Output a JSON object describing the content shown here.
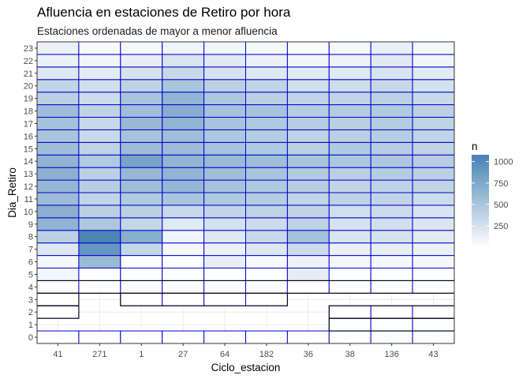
{
  "colors": {
    "low": "#ffffff",
    "high": "#4682b4",
    "cell_border": "#0000cd",
    "empty_border": "#000000",
    "panel_border": "#333333",
    "grid": "#ebebeb"
  },
  "chart_data": {
    "type": "heatmap",
    "title": "Afluencia en estaciones de Retiro por hora",
    "subtitle": "Estaciones ordenadas de mayor a menor afluencia",
    "xlabel": "Ciclo_estacion",
    "ylabel": "Dia_Retiro",
    "categories": [
      "41",
      "271",
      "1",
      "27",
      "64",
      "182",
      "36",
      "38",
      "136",
      "43"
    ],
    "y_categories": [
      "0",
      "1",
      "2",
      "3",
      "4",
      "5",
      "6",
      "7",
      "8",
      "9",
      "10",
      "11",
      "12",
      "13",
      "14",
      "15",
      "16",
      "17",
      "18",
      "19",
      "20",
      "21",
      "22",
      "23"
    ],
    "legend": {
      "title": "n",
      "position": "right",
      "breaks": [
        250,
        500,
        750,
        1000
      ],
      "range": [
        1,
        1080
      ]
    },
    "grid": true,
    "rows": [
      {
        "y": "0",
        "values": [
          10,
          10,
          5,
          5,
          20,
          5,
          5,
          5,
          30,
          20
        ]
      },
      {
        "y": "1",
        "values": [
          null,
          null,
          null,
          null,
          null,
          null,
          null,
          5,
          5,
          5
        ]
      },
      {
        "y": "2",
        "values": [
          3,
          null,
          null,
          null,
          null,
          null,
          null,
          3,
          3,
          3
        ]
      },
      {
        "y": "3",
        "values": [
          3,
          null,
          3,
          3,
          3,
          3,
          null,
          null,
          null,
          null
        ]
      },
      {
        "y": "4",
        "values": [
          3,
          3,
          3,
          3,
          3,
          3,
          3,
          3,
          3,
          3
        ]
      },
      {
        "y": "5",
        "values": [
          80,
          10,
          5,
          5,
          10,
          10,
          160,
          10,
          10,
          10
        ]
      },
      {
        "y": "6",
        "values": [
          60,
          600,
          20,
          10,
          140,
          50,
          110,
          60,
          60,
          60
        ]
      },
      {
        "y": "7",
        "values": [
          200,
          900,
          350,
          60,
          120,
          200,
          310,
          130,
          140,
          110
        ]
      },
      {
        "y": "8",
        "values": [
          400,
          1050,
          700,
          90,
          200,
          320,
          530,
          220,
          240,
          170
        ]
      },
      {
        "y": "9",
        "values": [
          650,
          480,
          350,
          180,
          250,
          300,
          380,
          240,
          270,
          210
        ]
      },
      {
        "y": "10",
        "values": [
          680,
          400,
          400,
          320,
          360,
          380,
          370,
          280,
          300,
          230
        ]
      },
      {
        "y": "11",
        "values": [
          580,
          360,
          460,
          500,
          470,
          430,
          360,
          380,
          360,
          300
        ]
      },
      {
        "y": "12",
        "values": [
          620,
          420,
          560,
          620,
          520,
          470,
          420,
          360,
          380,
          370
        ]
      },
      {
        "y": "13",
        "values": [
          670,
          400,
          610,
          640,
          560,
          510,
          450,
          400,
          430,
          400
        ]
      },
      {
        "y": "14",
        "values": [
          650,
          460,
          790,
          640,
          600,
          560,
          500,
          480,
          480,
          420
        ]
      },
      {
        "y": "15",
        "values": [
          560,
          380,
          580,
          580,
          520,
          460,
          400,
          460,
          420,
          370
        ]
      },
      {
        "y": "16",
        "values": [
          500,
          320,
          520,
          560,
          480,
          430,
          380,
          400,
          420,
          370
        ]
      },
      {
        "y": "17",
        "values": [
          530,
          330,
          600,
          650,
          510,
          470,
          420,
          410,
          440,
          380
        ]
      },
      {
        "y": "18",
        "values": [
          580,
          380,
          560,
          700,
          530,
          520,
          430,
          440,
          460,
          400
        ]
      },
      {
        "y": "19",
        "values": [
          400,
          300,
          500,
          640,
          480,
          400,
          370,
          360,
          390,
          320
        ]
      },
      {
        "y": "20",
        "values": [
          360,
          280,
          380,
          500,
          400,
          360,
          280,
          290,
          330,
          260
        ]
      },
      {
        "y": "21",
        "values": [
          200,
          160,
          240,
          330,
          240,
          200,
          170,
          180,
          230,
          170
        ]
      },
      {
        "y": "22",
        "values": [
          120,
          90,
          140,
          230,
          180,
          120,
          90,
          110,
          180,
          90
        ]
      },
      {
        "y": "23",
        "values": [
          120,
          50,
          60,
          90,
          80,
          60,
          40,
          60,
          130,
          60
        ]
      }
    ]
  }
}
